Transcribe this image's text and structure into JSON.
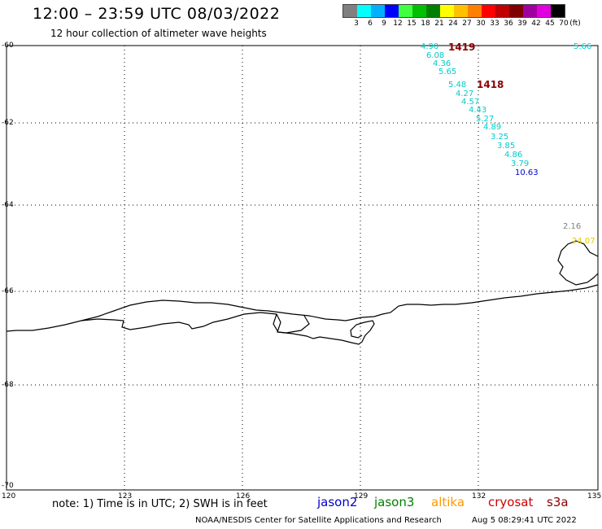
{
  "header": {
    "title": "12:00 – 23:59 UTC 08/03/2022",
    "subtitle": "12 hour collection of altimeter wave heights"
  },
  "legend": {
    "colors": [
      "#808080",
      "#00ffff",
      "#00b0ff",
      "#0000ff",
      "#40ff40",
      "#00c000",
      "#008000",
      "#ffff00",
      "#ffc000",
      "#ff8000",
      "#ff0000",
      "#c00000",
      "#800000",
      "#a000a0",
      "#e000e0",
      "#000000"
    ],
    "labels": [
      "3",
      "6",
      "9",
      "12",
      "15",
      "18",
      "21",
      "24",
      "27",
      "30",
      "33",
      "36",
      "39",
      "42",
      "45",
      "70",
      "(ft)"
    ]
  },
  "axes": {
    "lat_labels": [
      "-60",
      "-62",
      "-64",
      "-66",
      "-68",
      "-70"
    ],
    "lon_labels": [
      "120",
      "123",
      "126",
      "129",
      "132",
      "135"
    ]
  },
  "passes": [
    {
      "id": "1419",
      "color": "#8b0000"
    },
    {
      "id": "1418",
      "color": "#8b0000"
    }
  ],
  "wave_heights": [
    {
      "v": "4.90",
      "color": "#00cccc"
    },
    {
      "v": "6.08",
      "color": "#00cccc"
    },
    {
      "v": "4.36",
      "color": "#00cccc"
    },
    {
      "v": "5.65",
      "color": "#00cccc"
    },
    {
      "v": "5.48",
      "color": "#00cccc"
    },
    {
      "v": "4.27",
      "color": "#00cccc"
    },
    {
      "v": "4.57",
      "color": "#00cccc"
    },
    {
      "v": "4.43",
      "color": "#00cccc"
    },
    {
      "v": "5.27",
      "color": "#00cccc"
    },
    {
      "v": "4.89",
      "color": "#00cccc"
    },
    {
      "v": "3.25",
      "color": "#00cccc"
    },
    {
      "v": "3.85",
      "color": "#00cccc"
    },
    {
      "v": "4.86",
      "color": "#00cccc"
    },
    {
      "v": "3.79",
      "color": "#00cccc"
    },
    {
      "v": "10.63",
      "color": "#0000cc"
    },
    {
      "v": "5.66",
      "color": "#00cccc"
    },
    {
      "v": "2.16",
      "color": "#808080"
    },
    {
      "v": "24.07",
      "color": "#e6c800"
    }
  ],
  "footer": {
    "note": "note: 1) Time is in UTC; 2) SWH is in feet",
    "missions": [
      {
        "name": "jason2",
        "color": "#0000cc"
      },
      {
        "name": "jason3",
        "color": "#008000"
      },
      {
        "name": "altika",
        "color": "#ff9900"
      },
      {
        "name": "cryosat",
        "color": "#cc0000"
      },
      {
        "name": "s3a",
        "color": "#8b0000"
      }
    ],
    "credit": "NOAA/NESDIS Center for Satellite Applications and Research",
    "timestamp": "Aug  5 08:29:41 UTC 2022"
  }
}
